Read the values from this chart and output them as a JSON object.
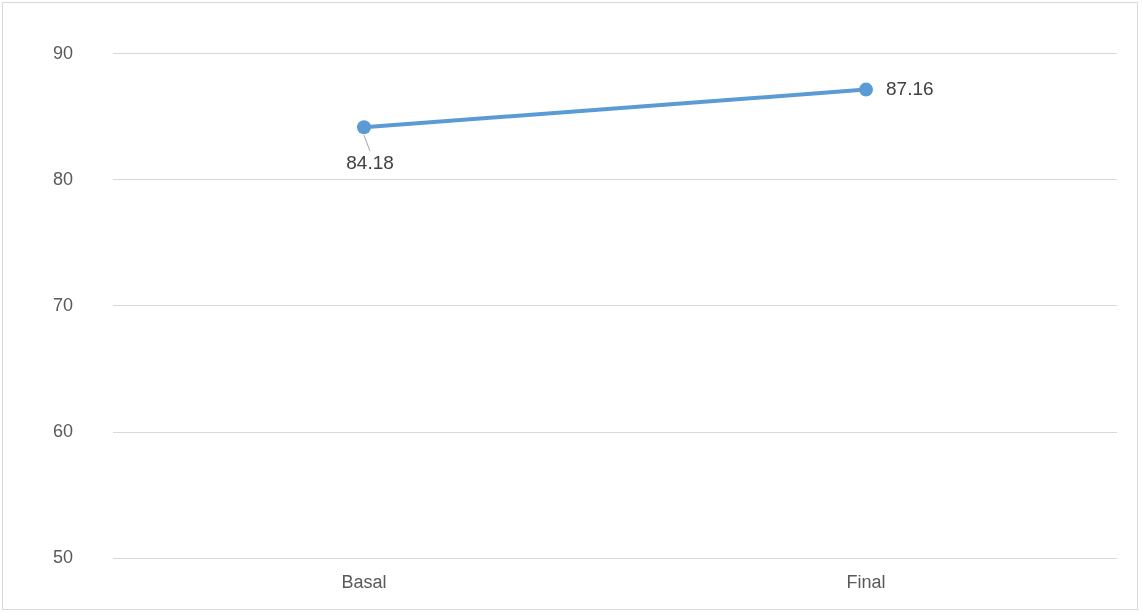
{
  "chart_data": {
    "type": "line",
    "categories": [
      "Basal",
      "Final"
    ],
    "series": [
      {
        "color": "#5b9bd5",
        "values": [
          84.18,
          87.16
        ]
      }
    ],
    "ylim": [
      50,
      90
    ],
    "yticks": [
      50,
      60,
      70,
      80,
      90
    ],
    "grid": "y",
    "legend": false,
    "marker": "circle",
    "line_style": "solid",
    "data_labels": true
  }
}
